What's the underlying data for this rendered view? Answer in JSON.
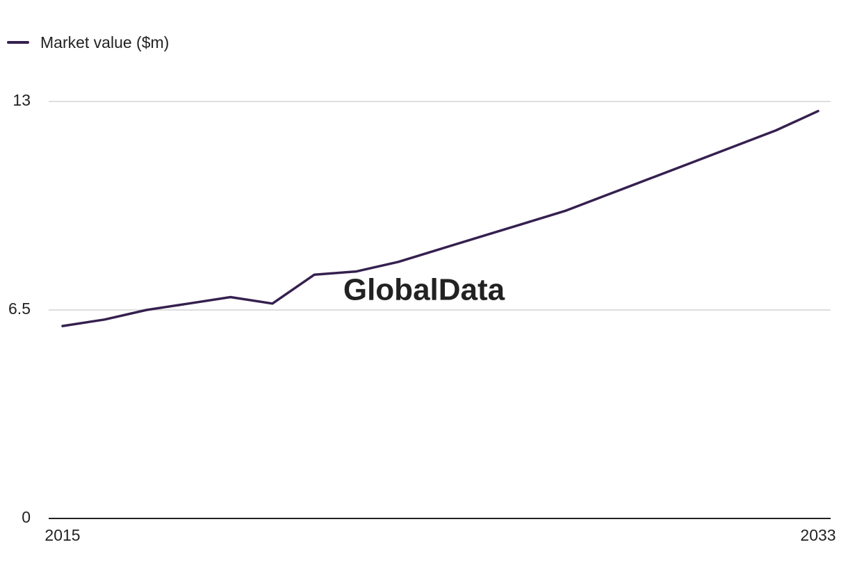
{
  "chart_data": {
    "type": "line",
    "title": "",
    "xlabel": "",
    "ylabel": "",
    "x": [
      2015,
      2016,
      2017,
      2018,
      2019,
      2020,
      2021,
      2022,
      2023,
      2024,
      2025,
      2026,
      2027,
      2028,
      2029,
      2030,
      2031,
      2032,
      2033
    ],
    "series": [
      {
        "name": "Market value ($m)",
        "values": [
          6.0,
          6.2,
          6.5,
          6.7,
          6.9,
          6.7,
          7.6,
          7.7,
          8.0,
          8.4,
          8.8,
          9.2,
          9.6,
          10.1,
          10.6,
          11.1,
          11.6,
          12.1,
          12.7
        ]
      }
    ],
    "xticks": [
      "2015",
      "2033"
    ],
    "yticks": [
      "0",
      "6.5",
      "13"
    ],
    "ylim": [
      0,
      13
    ],
    "xlim": [
      2015,
      2033
    ],
    "grid": true,
    "legend_position": "top-left",
    "watermark": "GlobalData",
    "colors": {
      "line": "#35204f",
      "grid": "#d4d4d4",
      "axis": "#222222",
      "watermark": "#f2f2f2"
    }
  }
}
